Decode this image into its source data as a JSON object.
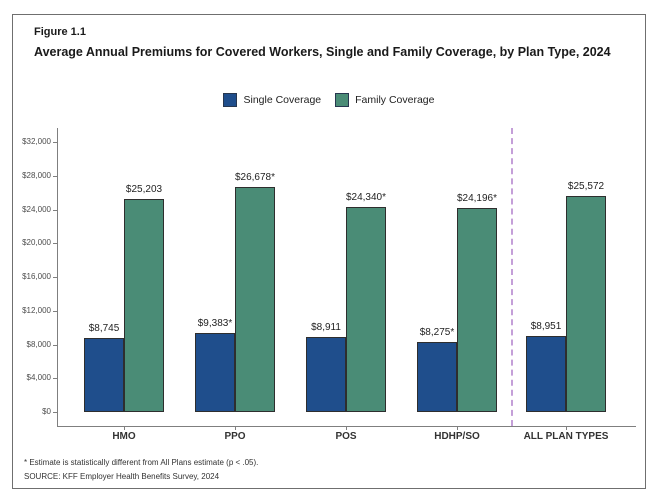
{
  "figure": {
    "label": "Figure 1.1",
    "title": "Average Annual Premiums for Covered Workers, Single and Family Coverage, by Plan Type, 2024"
  },
  "legend": [
    {
      "label": "Single Coverage",
      "color": "#1F4E8C"
    },
    {
      "label": "Family Coverage",
      "color": "#4A8C76"
    }
  ],
  "footnotes": [
    "* Estimate is statistically different from All Plans estimate (p < .05).",
    "SOURCE: KFF Employer Health Benefits Survey, 2024"
  ],
  "chart_data": {
    "type": "bar",
    "title": "Average Annual Premiums for Covered Workers, Single and Family Coverage, by Plan Type, 2024",
    "categories": [
      "HMO",
      "PPO",
      "POS",
      "HDHP/SO",
      "ALL PLAN TYPES"
    ],
    "series": [
      {
        "name": "Single Coverage",
        "color": "#1F4E8C",
        "values": [
          8745,
          9383,
          8911,
          8275,
          8951
        ],
        "labels": [
          "$8,745",
          "$9,383*",
          "$8,911",
          "$8,275*",
          "$8,951"
        ]
      },
      {
        "name": "Family Coverage",
        "color": "#4A8C76",
        "values": [
          25203,
          26678,
          24340,
          24196,
          25572
        ],
        "labels": [
          "$25,203",
          "$26,678*",
          "$24,340*",
          "$24,196*",
          "$25,572"
        ]
      }
    ],
    "xlabel": "",
    "ylabel": "",
    "ylim": [
      0,
      32000
    ],
    "ytick_step": 4000,
    "ytick_labels": [
      "$0",
      "$4,000",
      "$8,000",
      "$12,000",
      "$16,000",
      "$20,000",
      "$24,000",
      "$28,000",
      "$32,000"
    ],
    "grid": false,
    "legend_position": "top",
    "separator": {
      "after_category": "HDHP/SO",
      "style": "dashed",
      "color": "#C49FD8"
    }
  }
}
